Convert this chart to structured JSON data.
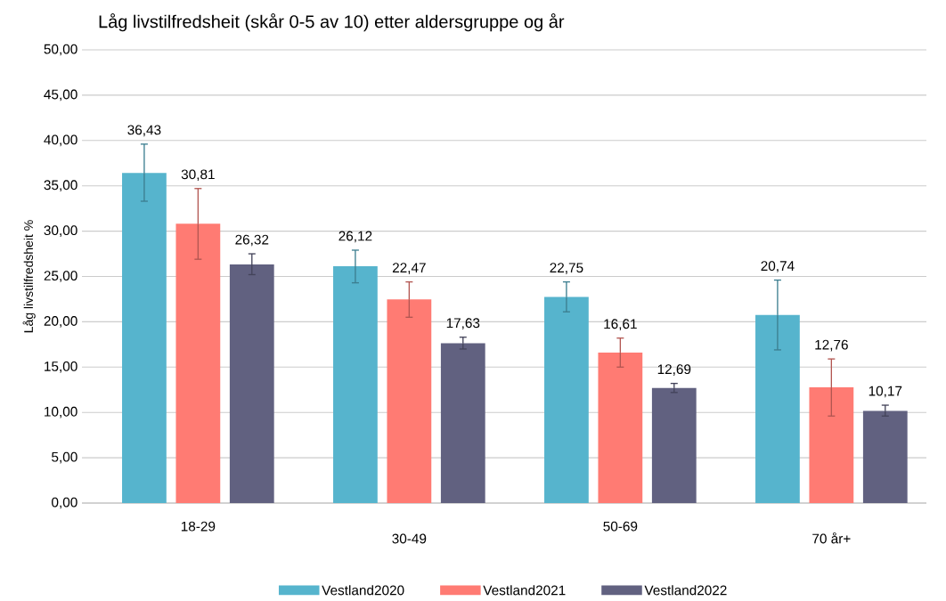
{
  "chart_data": {
    "type": "bar",
    "title": "Låg livstilfredsheit (skår 0-5 av 10) etter aldersgruppe og år",
    "ylabel": "Låg livstilfredsheit %",
    "categories": [
      "18-29",
      "30-49",
      "50-69",
      "70 år+"
    ],
    "series": [
      {
        "name": "Vestland2020",
        "color": "#56b4cd",
        "values": [
          36.43,
          26.12,
          22.75,
          20.74
        ],
        "value_labels": [
          "36,43",
          "26,12",
          "22,75",
          "20,74"
        ],
        "errors": [
          [
            33.3,
            39.6
          ],
          [
            24.3,
            27.9
          ],
          [
            21.1,
            24.4
          ],
          [
            16.9,
            24.6
          ]
        ]
      },
      {
        "name": "Vestland2021",
        "color": "#ff7b73",
        "values": [
          30.81,
          22.47,
          16.61,
          12.76
        ],
        "value_labels": [
          "30,81",
          "22,47",
          "16,61",
          "12,76"
        ],
        "errors": [
          [
            26.9,
            34.7
          ],
          [
            20.5,
            24.4
          ],
          [
            15.0,
            18.2
          ],
          [
            9.6,
            15.9
          ]
        ]
      },
      {
        "name": "Vestland2022",
        "color": "#616180",
        "values": [
          26.32,
          17.63,
          12.69,
          10.17
        ],
        "value_labels": [
          "26,32",
          "17,63",
          "12,69",
          "10,17"
        ],
        "errors": [
          [
            25.2,
            27.5
          ],
          [
            17.0,
            18.3
          ],
          [
            12.2,
            13.2
          ],
          [
            9.6,
            10.8
          ]
        ]
      }
    ],
    "ylim": [
      0,
      50
    ],
    "yticks": [
      {
        "value": 0,
        "label": "0,00"
      },
      {
        "value": 5,
        "label": "5,00"
      },
      {
        "value": 10,
        "label": "10,00"
      },
      {
        "value": 15,
        "label": "15,00"
      },
      {
        "value": 20,
        "label": "20,00"
      },
      {
        "value": 25,
        "label": "25,00"
      },
      {
        "value": 30,
        "label": "30,00"
      },
      {
        "value": 35,
        "label": "35,00"
      },
      {
        "value": 40,
        "label": "40,00"
      },
      {
        "value": 45,
        "label": "45,00"
      },
      {
        "value": 50,
        "label": "50,00"
      }
    ],
    "grid": "y",
    "legend": "bottom"
  }
}
